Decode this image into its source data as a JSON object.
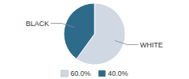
{
  "chart_data": {
    "type": "pie",
    "categories": [
      "WHITE",
      "BLACK"
    ],
    "values": [
      60.0,
      40.0
    ],
    "colors": [
      "#d0d8e4",
      "#2e6a8a"
    ],
    "value_labels": [
      "60.0%",
      "40.0%"
    ],
    "legend": "bottom"
  }
}
